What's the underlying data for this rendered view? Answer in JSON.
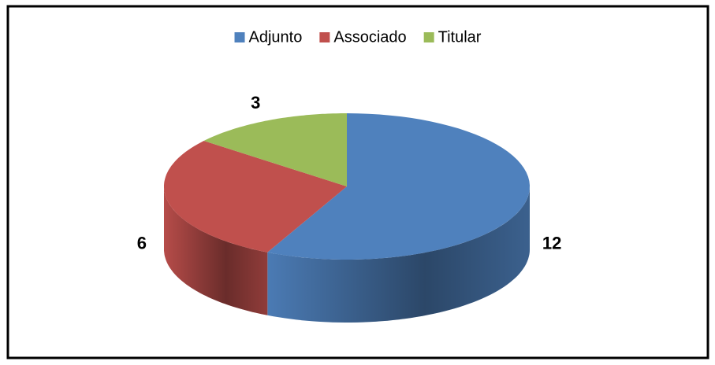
{
  "chart_data": {
    "type": "pie",
    "categories": [
      "Adjunto",
      "Associado",
      "Titular"
    ],
    "values": [
      12,
      6,
      3
    ],
    "colors": [
      "#4f81bd",
      "#c0504d",
      "#9bbb59"
    ],
    "legend": "top"
  }
}
